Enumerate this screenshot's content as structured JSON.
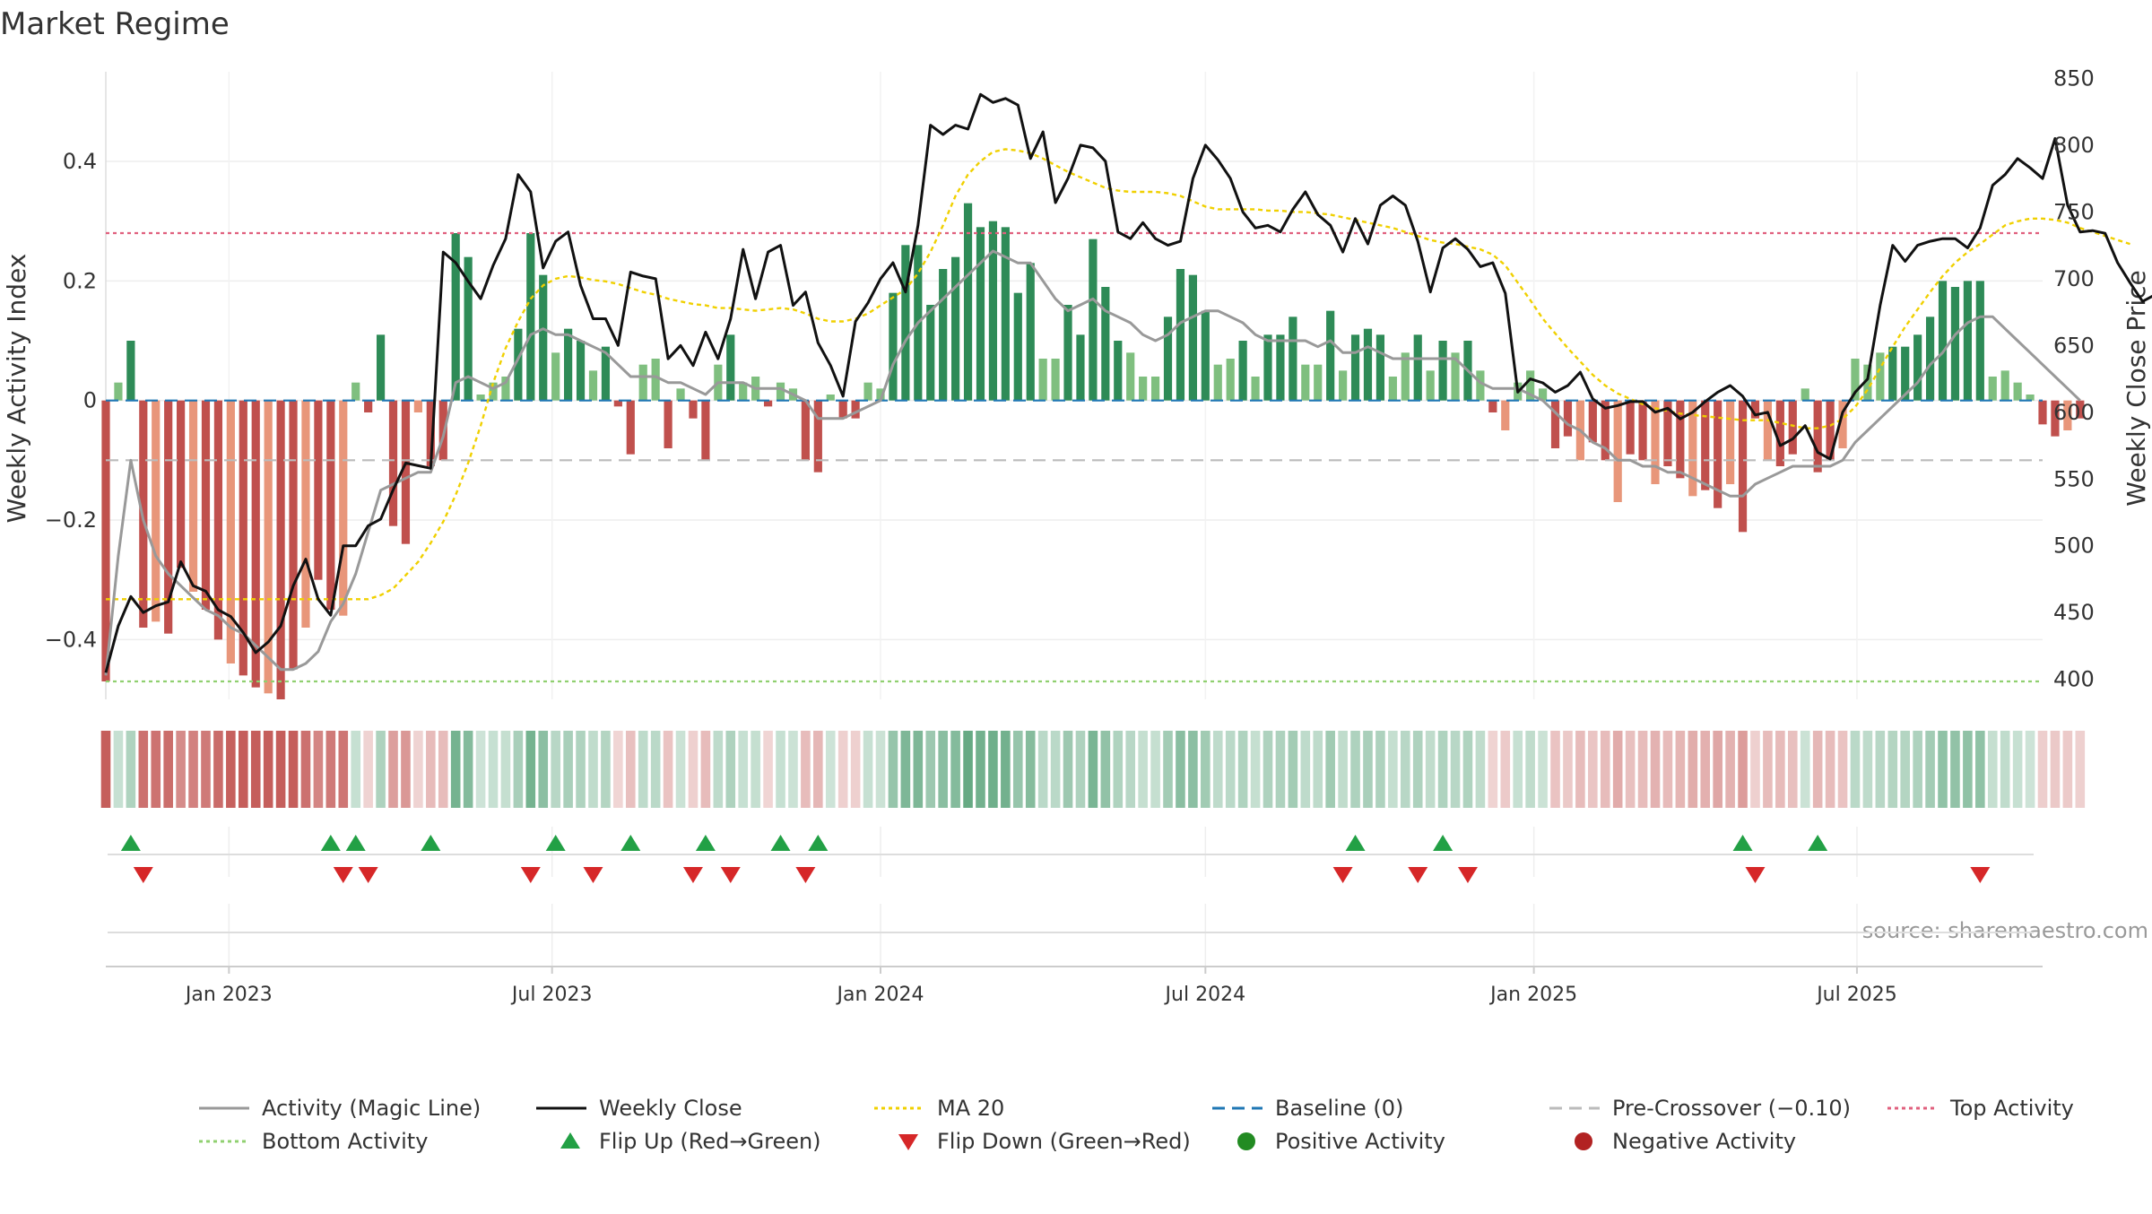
{
  "title": "Market Regime",
  "source": "source: sharemaestro.com",
  "colors": {
    "pos_strong": "#2e8b57",
    "pos_light": "#7fbf7f",
    "neg_strong": "#c0504d",
    "neg_light": "#e8967a",
    "magic_line": "#999999",
    "close": "#111111",
    "ma20": "#f0d000",
    "baseline": "#1f77b4",
    "pre_crossover": "#bbbbbb",
    "top_activity": "#e0607e",
    "bottom_activity": "#90d070",
    "flip_up": "#22a045",
    "flip_down": "#d62728",
    "positive_dot": "#228b22",
    "negative_dot": "#b22222"
  },
  "legend": [
    {
      "label": "Activity (Magic Line)",
      "kind": "line",
      "color": "#999999",
      "dash": "none"
    },
    {
      "label": "Weekly Close",
      "kind": "line",
      "color": "#111111",
      "dash": "none"
    },
    {
      "label": "MA 20",
      "kind": "line",
      "color": "#f0d000",
      "dash": "4,4"
    },
    {
      "label": "Baseline (0)",
      "kind": "line",
      "color": "#1f77b4",
      "dash": "14,8"
    },
    {
      "label": "Pre-Crossover (−0.10)",
      "kind": "line",
      "color": "#bbbbbb",
      "dash": "14,8"
    },
    {
      "label": "Top Activity",
      "kind": "line",
      "color": "#e0607e",
      "dash": "4,4"
    },
    {
      "label": "Bottom Activity",
      "kind": "line",
      "color": "#90d070",
      "dash": "4,4"
    },
    {
      "label": "Flip Up (Red→Green)",
      "kind": "tri-up",
      "color": "#22a045"
    },
    {
      "label": "Flip Down (Green→Red)",
      "kind": "tri-down",
      "color": "#d62728"
    },
    {
      "label": "Positive Activity",
      "kind": "dot",
      "color": "#228b22"
    },
    {
      "label": "Negative Activity",
      "kind": "dot",
      "color": "#b22222"
    }
  ],
  "chart_data": {
    "type": "bar",
    "title": "Market Regime",
    "ylabel_left": "Weekly Activity Index",
    "ylabel_right": "Weekly Close Price",
    "ylim_left": [
      -0.5,
      0.55
    ],
    "ylim_right": [
      385,
      855
    ],
    "left_ticks": [
      {
        "v": -0.4,
        "label": "−0.4"
      },
      {
        "v": -0.2,
        "label": "−0.2"
      },
      {
        "v": 0,
        "label": "0"
      },
      {
        "v": 0.2,
        "label": "0.2"
      },
      {
        "v": 0.4,
        "label": "0.4"
      }
    ],
    "right_ticks": [
      {
        "v": 400,
        "label": "400"
      },
      {
        "v": 450,
        "label": "450"
      },
      {
        "v": 500,
        "label": "500"
      },
      {
        "v": 550,
        "label": "550"
      },
      {
        "v": 600,
        "label": "600"
      },
      {
        "v": 650,
        "label": "650"
      },
      {
        "v": 700,
        "label": "700"
      },
      {
        "v": 750,
        "label": "750"
      },
      {
        "v": 800,
        "label": "800"
      },
      {
        "v": 850,
        "label": "850"
      }
    ],
    "x_ticks": [
      {
        "date": "2023-01-01",
        "label": "Jan 2023"
      },
      {
        "date": "2023-07-01",
        "label": "Jul 2023"
      },
      {
        "date": "2024-01-01",
        "label": "Jan 2024"
      },
      {
        "date": "2024-07-01",
        "label": "Jul 2024"
      },
      {
        "date": "2025-01-01",
        "label": "Jan 2025"
      },
      {
        "date": "2025-07-01",
        "label": "Jul 2025"
      }
    ],
    "x_range": [
      "2022-10-24",
      "2025-10-13"
    ],
    "top_activity": 0.28,
    "bottom_activity": -0.47,
    "pre_crossover": -0.1,
    "baseline": 0,
    "grid": true,
    "legend_position": "bottom",
    "activity": {
      "start_date": "2022-10-24",
      "values": [
        -0.47,
        0.03,
        0.1,
        -0.38,
        -0.37,
        -0.39,
        -0.28,
        -0.32,
        -0.35,
        -0.4,
        -0.44,
        -0.46,
        -0.48,
        -0.49,
        -0.5,
        -0.45,
        -0.38,
        -0.3,
        -0.35,
        -0.36,
        0.03,
        -0.02,
        0.11,
        -0.21,
        -0.24,
        -0.02,
        -0.11,
        -0.1,
        0.28,
        0.24,
        0.01,
        0.03,
        0.04,
        0.12,
        0.28,
        0.21,
        0.08,
        0.12,
        0.1,
        0.05,
        0.09,
        -0.01,
        -0.09,
        0.06,
        0.07,
        -0.08,
        0.02,
        -0.03,
        -0.1,
        0.06,
        0.11,
        0.03,
        0.04,
        -0.01,
        0.03,
        0.02,
        -0.1,
        -0.12,
        0.01,
        -0.03,
        -0.03,
        0.03,
        0.02,
        0.18,
        0.26,
        0.26,
        0.16,
        0.22,
        0.24,
        0.33,
        0.29,
        0.3,
        0.29,
        0.18,
        0.23,
        0.07,
        0.07,
        0.16,
        0.11,
        0.27,
        0.19,
        0.1,
        0.08,
        0.04,
        0.04,
        0.14,
        0.22,
        0.21,
        0.15,
        0.06,
        0.07,
        0.1,
        0.04,
        0.11,
        0.11,
        0.14,
        0.06,
        0.06,
        0.15,
        0.05,
        0.11,
        0.12,
        0.11,
        0.04,
        0.08,
        0.11,
        0.05,
        0.1,
        0.08,
        0.1,
        0.05,
        -0.02,
        -0.05,
        0.03,
        0.05,
        0.02,
        -0.08,
        -0.06,
        -0.1,
        -0.07,
        -0.1,
        -0.17,
        -0.09,
        -0.1,
        -0.14,
        -0.11,
        -0.13,
        -0.16,
        -0.15,
        -0.18,
        -0.14,
        -0.22,
        -0.03,
        -0.1,
        -0.11,
        -0.09,
        0.02,
        -0.12,
        -0.1,
        -0.08,
        0.07,
        0.06,
        0.08,
        0.09,
        0.09,
        0.11,
        0.14,
        0.2,
        0.19,
        0.2,
        0.2,
        0.04,
        0.05,
        0.03,
        0.01,
        -0.04,
        -0.06,
        -0.05,
        -0.03
      ]
    },
    "magic_line": {
      "start_date": "2022-10-24",
      "values": [
        -0.46,
        -0.26,
        -0.1,
        -0.2,
        -0.26,
        -0.29,
        -0.31,
        -0.33,
        -0.35,
        -0.36,
        -0.38,
        -0.39,
        -0.41,
        -0.43,
        -0.45,
        -0.45,
        -0.44,
        -0.42,
        -0.37,
        -0.34,
        -0.29,
        -0.22,
        -0.15,
        -0.14,
        -0.13,
        -0.12,
        -0.12,
        -0.06,
        0.03,
        0.04,
        0.03,
        0.02,
        0.03,
        0.07,
        0.11,
        0.12,
        0.11,
        0.11,
        0.1,
        0.09,
        0.08,
        0.06,
        0.04,
        0.04,
        0.04,
        0.03,
        0.03,
        0.02,
        0.01,
        0.03,
        0.03,
        0.03,
        0.02,
        0.02,
        0.02,
        0.01,
        0.0,
        -0.03,
        -0.03,
        -0.03,
        -0.02,
        -0.01,
        0.0,
        0.06,
        0.1,
        0.13,
        0.15,
        0.17,
        0.19,
        0.21,
        0.23,
        0.25,
        0.24,
        0.23,
        0.23,
        0.2,
        0.17,
        0.15,
        0.16,
        0.17,
        0.15,
        0.14,
        0.13,
        0.11,
        0.1,
        0.11,
        0.13,
        0.14,
        0.15,
        0.15,
        0.14,
        0.13,
        0.11,
        0.1,
        0.1,
        0.1,
        0.1,
        0.09,
        0.1,
        0.08,
        0.08,
        0.09,
        0.08,
        0.07,
        0.07,
        0.07,
        0.07,
        0.07,
        0.07,
        0.05,
        0.03,
        0.02,
        0.02,
        0.02,
        0.01,
        0.0,
        -0.02,
        -0.04,
        -0.05,
        -0.07,
        -0.08,
        -0.1,
        -0.1,
        -0.11,
        -0.11,
        -0.12,
        -0.12,
        -0.13,
        -0.14,
        -0.15,
        -0.16,
        -0.16,
        -0.14,
        -0.13,
        -0.12,
        -0.11,
        -0.11,
        -0.11,
        -0.11,
        -0.1,
        -0.07,
        -0.05,
        -0.03,
        -0.01,
        0.01,
        0.03,
        0.06,
        0.08,
        0.11,
        0.13,
        0.14,
        0.14,
        0.12,
        0.1,
        0.08,
        0.06,
        0.04,
        0.02,
        0.0
      ]
    },
    "weekly_close": {
      "start_date": "2022-10-24",
      "values": [
        405,
        440,
        462,
        450,
        455,
        458,
        488,
        470,
        466,
        452,
        447,
        435,
        420,
        428,
        440,
        470,
        490,
        460,
        448,
        500,
        500,
        515,
        520,
        542,
        562,
        560,
        558,
        720,
        712,
        698,
        685,
        710,
        730,
        778,
        765,
        708,
        728,
        735,
        695,
        670,
        670,
        650,
        705,
        702,
        700,
        640,
        650,
        635,
        660,
        640,
        670,
        722,
        685,
        720,
        725,
        680,
        690,
        652,
        635,
        612,
        668,
        682,
        700,
        712,
        690,
        740,
        815,
        808,
        815,
        812,
        838,
        832,
        835,
        830,
        790,
        810,
        757,
        775,
        800,
        798,
        788,
        735,
        730,
        742,
        730,
        725,
        728,
        775,
        800,
        789,
        775,
        750,
        738,
        740,
        735,
        752,
        765,
        748,
        740,
        720,
        745,
        726,
        755,
        762,
        755,
        728,
        690,
        723,
        730,
        722,
        709,
        712,
        689,
        615,
        625,
        622,
        615,
        620,
        630,
        610,
        603,
        605,
        608,
        608,
        600,
        603,
        595,
        600,
        608,
        615,
        620,
        612,
        598,
        600,
        575,
        580,
        590,
        570,
        565,
        600,
        615,
        625,
        680,
        725,
        713,
        725,
        728,
        730,
        730,
        723,
        738,
        770,
        778,
        790,
        783,
        775,
        805,
        755,
        735,
        736,
        734,
        712,
        697,
        683,
        688,
        693
      ]
    },
    "ma20": {
      "start_date": "2022-10-24",
      "values": [
        460,
        460,
        460,
        460,
        460,
        460,
        460,
        460,
        460,
        460,
        460,
        460,
        460,
        460,
        460,
        460,
        460,
        460,
        460,
        460,
        460,
        460,
        463,
        468,
        478,
        488,
        502,
        518,
        538,
        562,
        590,
        622,
        648,
        668,
        685,
        695,
        700,
        702,
        701,
        699,
        698,
        696,
        693,
        690,
        688,
        685,
        683,
        681,
        680,
        678,
        678,
        677,
        676,
        677,
        678,
        677,
        674,
        670,
        668,
        668,
        670,
        674,
        680,
        686,
        692,
        704,
        720,
        740,
        762,
        778,
        788,
        795,
        797,
        796,
        794,
        790,
        785,
        780,
        776,
        772,
        768,
        766,
        765,
        765,
        765,
        764,
        762,
        758,
        754,
        752,
        752,
        752,
        752,
        751,
        751,
        750,
        750,
        749,
        748,
        746,
        744,
        742,
        740,
        738,
        735,
        732,
        729,
        727,
        726,
        724,
        722,
        718,
        710,
        697,
        684,
        670,
        659,
        648,
        638,
        628,
        620,
        614,
        610,
        606,
        603,
        601,
        599,
        598,
        597,
        596,
        595,
        594,
        594,
        594,
        592,
        590,
        588,
        588,
        590,
        595,
        604,
        617,
        633,
        649,
        664,
        677,
        690,
        702,
        712,
        720,
        726,
        733,
        740,
        743,
        745,
        745,
        744,
        742,
        738,
        735,
        732,
        729,
        726
      ]
    },
    "flips_up": [
      "2022-11-07",
      "2023-02-27",
      "2023-03-13",
      "2023-04-24",
      "2023-07-03",
      "2023-08-14",
      "2023-09-25",
      "2023-11-06",
      "2023-11-27",
      "2024-09-23",
      "2024-11-11",
      "2025-04-28",
      "2025-06-09"
    ],
    "flips_down": [
      "2022-11-14",
      "2023-03-06",
      "2023-03-20",
      "2023-06-19",
      "2023-07-24",
      "2023-09-18",
      "2023-10-09",
      "2023-11-20",
      "2024-09-16",
      "2024-10-28",
      "2024-11-25",
      "2025-05-05",
      "2025-09-08"
    ]
  }
}
